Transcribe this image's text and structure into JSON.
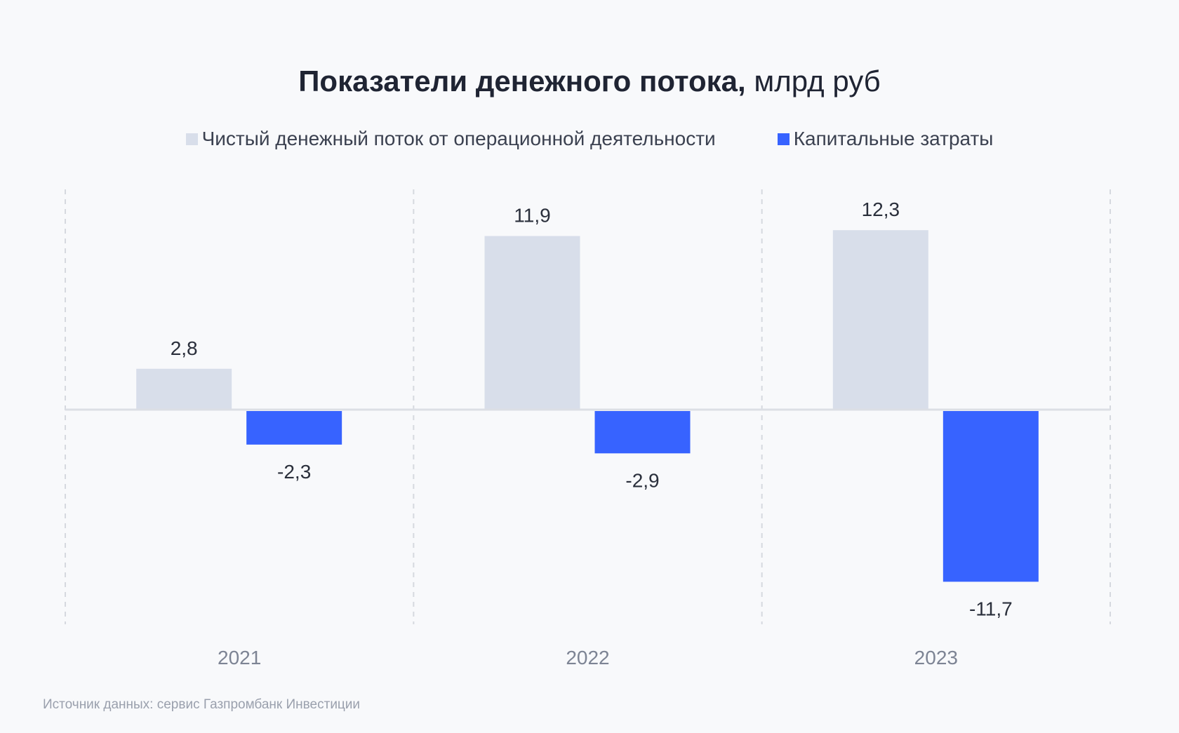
{
  "chart_data": {
    "type": "bar",
    "title_bold": "Показатели денежного потока,",
    "title_unit": "млрд руб",
    "categories": [
      "2021",
      "2022",
      "2023"
    ],
    "series": [
      {
        "name": "Чистый денежный поток от операционной деятельности",
        "values": [
          2.8,
          11.9,
          12.3
        ],
        "labels": [
          "2,8",
          "11,9",
          "12,3"
        ],
        "color": "#d8deea"
      },
      {
        "name": "Капитальные затраты",
        "values": [
          -2.3,
          -2.9,
          -11.7
        ],
        "labels": [
          "-2,3",
          "-2,9",
          "-11,7"
        ],
        "color": "#3763ff"
      }
    ],
    "grid": true,
    "legend_position": "top-center"
  },
  "source": "Источник данных: сервис Газпромбанк Инвестиции"
}
